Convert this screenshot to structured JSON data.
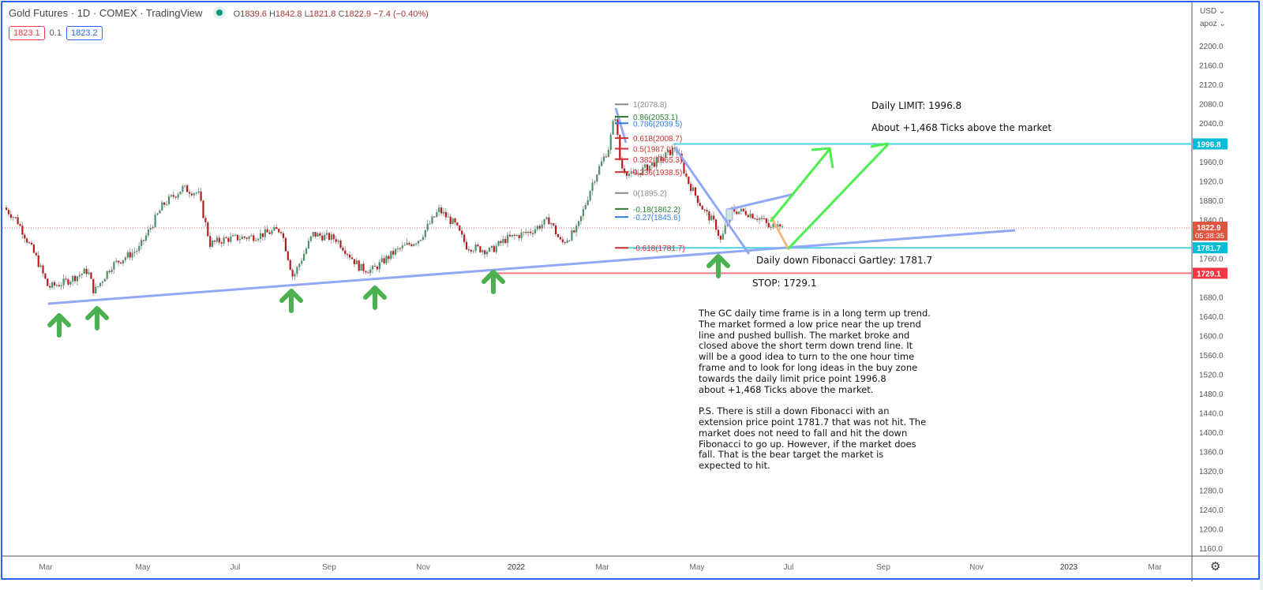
{
  "header": {
    "title": "Gold Futures · 1D · COMEX · TradingView",
    "ohlc": {
      "open": "1839.6",
      "high": "1842.8",
      "low": "1821.8",
      "close": "1822.9",
      "change": "−7.4 (−0.40%)"
    },
    "ohlc_labels": {
      "open": "O",
      "high": "H",
      "low": "L",
      "close": "C"
    },
    "sell_price": "1823.1",
    "spread": "0.1",
    "buy_price": "1823.2"
  },
  "price_axis": {
    "currency": "USD ⌄",
    "mode": "apoz ⌄",
    "ticks": [
      "2200.0",
      "2160.0",
      "2120.0",
      "2080.0",
      "2040.0",
      "1960.0",
      "1920.0",
      "1880.0",
      "1840.0",
      "1760.0",
      "1680.0",
      "1640.0",
      "1600.0",
      "1560.0",
      "1520.0",
      "1480.0",
      "1440.0",
      "1400.0",
      "1360.0",
      "1320.0",
      "1280.0",
      "1240.0",
      "1200.0",
      "1160.0"
    ],
    "badges": [
      {
        "id": "limit",
        "value": "1996.8",
        "color": "#00bcd4"
      },
      {
        "id": "last",
        "value": "1822.9",
        "countdown": "05:38:35",
        "color": "#e0533f"
      },
      {
        "id": "fib",
        "value": "1781.7",
        "color": "#00bcd4"
      },
      {
        "id": "stop",
        "value": "1729.1",
        "color": "#f23645"
      }
    ]
  },
  "time_axis": {
    "labels": [
      "Mar",
      "May",
      "Jul",
      "Sep",
      "Nov",
      "2022",
      "Mar",
      "May",
      "Jul",
      "Sep",
      "Nov",
      "2023",
      "Mar"
    ],
    "settings_icon": "gear-icon"
  },
  "fibonacci": [
    {
      "label": "1(2078.8)",
      "color": "#888888"
    },
    {
      "label": "0.86(2053.1)",
      "color": "#2e7d32"
    },
    {
      "label": "0.786(2039.5)",
      "color": "#2f7de1"
    },
    {
      "label": "0.618(2008.7)",
      "color": "#d32f2f"
    },
    {
      "label": "0.5(1987.0)",
      "color": "#d32f2f"
    },
    {
      "label": "0.382(1965.3)",
      "color": "#d32f2f"
    },
    {
      "label": "0.236(1938.5)",
      "color": "#d32f2f"
    },
    {
      "label": "0(1895.2)",
      "color": "#888888"
    },
    {
      "label": "-0.18(1862.2)",
      "color": "#2e7d32"
    },
    {
      "label": "-0.27(1845.6)",
      "color": "#2f7de1"
    },
    {
      "label": "-0.618(1781.7)",
      "color": "#d32f2f"
    }
  ],
  "annotations": {
    "limit_title": "Daily LIMIT: 1996.8",
    "limit_sub": "About +1,468 Ticks above the market",
    "fib_target": "Daily down Fibonacci Gartley: 1781.7",
    "stop": "STOP: 1729.1",
    "note": "The GC daily time frame is in a long term up trend.\nThe market formed a low price near the up trend\nline and pushed bullish. The market broke and\nclosed above the short term down trend line. It\nwill be a good idea to turn to the one hour time\nframe and to look for long ideas in the buy zone\ntowards the daily limit price point 1996.8\nabout +1,468 Ticks above the market.\n\nP.S. There is still a down Fibonacci with an\nextension price point 1781.7 that was not hit. The\nmarket does not need to fall and hit the down\nFibonacci to go up. However, if the market does\nfall. That is the bear target the market is\nexpected to hit."
  },
  "colors": {
    "up_candle": "#4f8f6b",
    "down_candle": "#b71c1c",
    "trendline": "#90a8f5",
    "limit_line": "#4dd0e1",
    "stop_line": "#ef7a85",
    "projection": "#4cef4c",
    "arrow": "#4caf50",
    "frame": "#2962ff"
  },
  "chart_data": {
    "type": "candlestick",
    "title": "Gold Futures · 1D · COMEX",
    "xlabel": "",
    "ylabel": "USD",
    "ylim": [
      1140,
      2230
    ],
    "x_range": [
      "2021-02",
      "2023-04"
    ],
    "grid": false,
    "last_price": 1822.9,
    "current_bar": {
      "open": 1839.6,
      "high": 1842.8,
      "low": 1821.8,
      "close": 1822.9,
      "change": -7.4,
      "change_pct": -0.4
    },
    "approx_monthly_closes": {
      "x": [
        "2021-02",
        "2021-03",
        "2021-04",
        "2021-05",
        "2021-06",
        "2021-07",
        "2021-08",
        "2021-09",
        "2021-10",
        "2021-11",
        "2021-12",
        "2022-01",
        "2022-02",
        "2022-03",
        "2022-04",
        "2022-05",
        "2022-06"
      ],
      "close": [
        1730,
        1715,
        1768,
        1905,
        1770,
        1815,
        1815,
        1755,
        1785,
        1775,
        1825,
        1795,
        1905,
        1940,
        1915,
        1850,
        1822.9
      ]
    },
    "horizontal_levels": [
      {
        "name": "Daily LIMIT",
        "price": 1996.8
      },
      {
        "name": "Daily down Fibonacci Gartley",
        "price": 1781.7
      },
      {
        "name": "STOP",
        "price": 1729.1
      }
    ],
    "fibonacci_levels": [
      {
        "ratio": 1,
        "price": 2078.8
      },
      {
        "ratio": 0.86,
        "price": 2053.1
      },
      {
        "ratio": 0.786,
        "price": 2039.5
      },
      {
        "ratio": 0.618,
        "price": 2008.7
      },
      {
        "ratio": 0.5,
        "price": 1987.0
      },
      {
        "ratio": 0.382,
        "price": 1965.3
      },
      {
        "ratio": 0.236,
        "price": 1938.5
      },
      {
        "ratio": 0,
        "price": 1895.2
      },
      {
        "ratio": -0.18,
        "price": 1862.2
      },
      {
        "ratio": -0.27,
        "price": 1845.6
      },
      {
        "ratio": -0.618,
        "price": 1781.7
      }
    ],
    "trendlines": [
      {
        "name": "long-term up trend",
        "from": [
          "2021-03-08",
          1677
        ],
        "to": [
          "2022-11-20",
          1820
        ]
      },
      {
        "name": "short-term down trend",
        "from": [
          "2022-04-18",
          1995
        ],
        "to": [
          "2022-05-25",
          1780
        ]
      }
    ],
    "support_arrows_at": [
      "2021-03",
      "2021-03-31",
      "2021-08-09",
      "2021-09-29",
      "2021-12-15",
      "2022-05-16"
    ]
  }
}
